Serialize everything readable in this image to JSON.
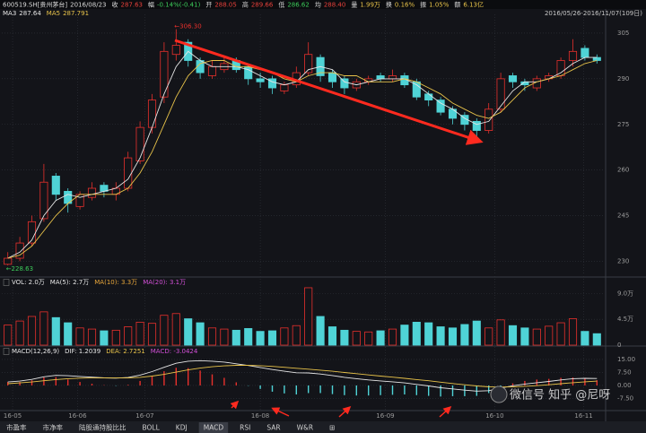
{
  "header": {
    "items": [
      {
        "label": "600519.SH[贵州茅台]",
        "value": "2016/08/23",
        "color": "#dcdcdc"
      },
      {
        "label": "收",
        "value": "287.63",
        "color": "#e8413b"
      },
      {
        "label": "幅",
        "value": "-0.14%(-0.41)",
        "color": "#3ccc5a"
      },
      {
        "label": "开",
        "value": "288.05",
        "color": "#e8413b"
      },
      {
        "label": "高",
        "value": "289.66",
        "color": "#e8413b"
      },
      {
        "label": "低",
        "value": "286.62",
        "color": "#3ccc5a"
      },
      {
        "label": "均",
        "value": "288.40",
        "color": "#e8413b"
      },
      {
        "label": "量",
        "value": "1.99万",
        "color": "#e8c34a"
      },
      {
        "label": "换",
        "value": "0.16%",
        "color": "#e8c34a"
      },
      {
        "label": "振",
        "value": "1.05%",
        "color": "#e8c34a"
      },
      {
        "label": "额",
        "value": "6.13亿",
        "color": "#e8c34a"
      }
    ],
    "date_range": "2016/05/26-2016/11/07(109日)"
  },
  "tabs": [
    "市盈率",
    "市净率",
    "陆股通持股比比",
    "BOLL",
    "KDJ",
    "MACD",
    "RSI",
    "SAR",
    "W&R",
    "⊞"
  ],
  "selected_tab": "MACD",
  "watermark": "微信号 知乎 @尼呀",
  "chart_data": [
    {
      "type": "candlestick",
      "up_color": "#e8302c",
      "down_color": "#4fd3d6",
      "ylim": [
        226,
        310
      ],
      "yticks": [
        230,
        245,
        260,
        275,
        290,
        305
      ],
      "grid": true,
      "annotations": [
        {
          "text": "←306.30",
          "index": 14,
          "value": 306.3,
          "color": "#e8302c"
        },
        {
          "text": "←228.63",
          "index": 0,
          "value": 228.63,
          "color": "#3ccc5a"
        }
      ],
      "open": [
        229,
        231,
        236,
        244,
        258,
        253,
        248,
        251,
        255,
        252,
        254,
        263,
        274,
        284,
        298,
        302,
        296,
        291,
        293,
        296,
        294,
        290,
        290,
        286,
        288,
        292,
        297,
        292,
        290,
        287,
        289,
        291,
        290,
        291,
        289,
        285,
        283,
        280,
        278,
        276,
        273,
        280,
        291,
        289,
        287,
        290,
        291,
        296,
        300,
        297
      ],
      "high": [
        233,
        238,
        245,
        262,
        259,
        254,
        253,
        256,
        256,
        256,
        266,
        276,
        285,
        302,
        306.3,
        303,
        297,
        296,
        297,
        297,
        295,
        292,
        291,
        289,
        294,
        302,
        298,
        293,
        291,
        290,
        291,
        292,
        293,
        292,
        290,
        286,
        284,
        281,
        279,
        277,
        282,
        292,
        292,
        290,
        291,
        292,
        297,
        303,
        301,
        298
      ],
      "low": [
        228.63,
        230,
        235,
        243,
        250,
        246,
        247,
        250,
        251,
        250,
        253,
        262,
        272,
        282,
        296,
        294,
        290,
        290,
        292,
        292,
        288,
        287,
        285,
        285,
        287,
        291,
        289,
        287,
        285,
        286,
        288,
        289,
        289,
        287,
        283,
        281,
        278,
        275,
        273,
        271,
        272,
        279,
        287,
        286,
        286,
        289,
        290,
        294,
        296,
        295
      ],
      "close": [
        231,
        236,
        243,
        256,
        252,
        249,
        252,
        254,
        253,
        254,
        264,
        274,
        283,
        299,
        301,
        296,
        292,
        294,
        295,
        293,
        290,
        289,
        287,
        288,
        292,
        298,
        291,
        289,
        287,
        289,
        290,
        290,
        291,
        288,
        284,
        283,
        279,
        277,
        275,
        273,
        280,
        290,
        289,
        288,
        290,
        291,
        296,
        299,
        297,
        296
      ],
      "series": [
        {
          "name": "MA3",
          "value_label": "287.64",
          "color": "#e6e6e6",
          "values": [
            231,
            233,
            237,
            245,
            250,
            252,
            251,
            252,
            253,
            254,
            257,
            264,
            274,
            285,
            294,
            299,
            296,
            294,
            294,
            294,
            293,
            291,
            289,
            288,
            289,
            293,
            294,
            293,
            289,
            288,
            289,
            290,
            290,
            290,
            288,
            285,
            282,
            280,
            277,
            275,
            276,
            281,
            286,
            289,
            289,
            290,
            292,
            295,
            297,
            297
          ]
        },
        {
          "name": "MA5",
          "value_label": "287.791",
          "color": "#e8c34a",
          "values": [
            231,
            232,
            235,
            240,
            245,
            249,
            252,
            252,
            252,
            252,
            254,
            259,
            266,
            275,
            284,
            291,
            295,
            296,
            296,
            294,
            294,
            293,
            292,
            290,
            289,
            291,
            292,
            292,
            291,
            291,
            289,
            289,
            289,
            290,
            289,
            287,
            285,
            282,
            280,
            278,
            277,
            279,
            283,
            287,
            289,
            290,
            291,
            293,
            295,
            296
          ]
        }
      ]
    },
    {
      "type": "bar",
      "legend": [
        {
          "text": "VOL: 2.0万",
          "color": "#e6e6e6"
        },
        {
          "text": "MA(5): 2.7万",
          "color": "#e6e6e6"
        },
        {
          "text": "MA(10): 3.3万",
          "color": "#e8a63a"
        },
        {
          "text": "MA(20): 3.1万",
          "color": "#d14fd6"
        }
      ],
      "ylim": [
        0,
        11.4
      ],
      "yticks": [
        {
          "value": 9,
          "label": "9.0万"
        },
        {
          "value": 4.5,
          "label": "4.5万"
        },
        0
      ],
      "values": [
        3.5,
        4.2,
        5.0,
        5.8,
        4.8,
        3.9,
        3.0,
        2.8,
        2.5,
        2.6,
        3.2,
        4.0,
        3.8,
        5.2,
        5.5,
        4.6,
        3.9,
        3.0,
        2.8,
        2.6,
        2.9,
        2.4,
        2.5,
        3.0,
        3.4,
        10.0,
        5.0,
        3.2,
        2.6,
        2.4,
        2.3,
        2.5,
        2.8,
        3.5,
        4.0,
        3.9,
        3.2,
        3.0,
        3.6,
        4.2,
        3.0,
        4.4,
        3.4,
        3.0,
        2.8,
        3.3,
        3.9,
        4.6,
        2.4,
        2.0
      ]
    },
    {
      "type": "macd",
      "legend": [
        {
          "text": "MACD(12,26,9)",
          "color": "#e6e6e6"
        },
        {
          "text": "DIF: 1.2039",
          "color": "#e6e6e6"
        },
        {
          "text": "DEA: 2.7251",
          "color": "#e8c34a"
        },
        {
          "text": "MACD: -3.0424",
          "color": "#d14fd6"
        }
      ],
      "ylim": [
        -14.5,
        21.7
      ],
      "yticks": [
        {
          "value": 15,
          "label": "15.00"
        },
        {
          "value": 7.5,
          "label": "7.50"
        },
        {
          "value": 0,
          "label": "0.00"
        },
        {
          "value": -7.5,
          "label": "-7.50"
        }
      ],
      "xlim": [
        -0.5,
        49.5
      ],
      "xticks": [
        {
          "value": 0.4,
          "label": "16-05"
        },
        {
          "value": 5.8,
          "label": "16-06"
        },
        {
          "value": 11.4,
          "label": "16-07"
        },
        {
          "value": 21,
          "label": "16-08"
        },
        {
          "value": 31.4,
          "label": "16-09"
        },
        {
          "value": 40.5,
          "label": "16-10"
        },
        {
          "value": 47.9,
          "label": "16-11"
        }
      ],
      "up_color": "#e8302c",
      "down_color": "#4fd3d6",
      "macd": [
        2,
        2,
        3,
        4.6,
        4.8,
        3.4,
        2,
        1,
        0.2,
        -0.2,
        0.4,
        2.6,
        5.2,
        8.2,
        10.2,
        10,
        8.6,
        6.4,
        4.4,
        1.8,
        -0.2,
        -2,
        -3.6,
        -4.6,
        -5.2,
        -4.4,
        -4.4,
        -5,
        -5.6,
        -5.8,
        -5.8,
        -5.6,
        -5.4,
        -5.2,
        -5.6,
        -6,
        -6.4,
        -6.2,
        -6.2,
        -6,
        -4.4,
        -1.2,
        1.2,
        2.6,
        3.4,
        3.8,
        4.4,
        4.6,
        4,
        3
      ],
      "series": [
        {
          "name": "DIF",
          "color": "#e6e6e6",
          "values": [
            2,
            2.5,
            3.5,
            5,
            5.8,
            5.6,
            5.2,
            4.8,
            4.4,
            4.2,
            4.6,
            6,
            8,
            10.5,
            12.8,
            14,
            14.3,
            14,
            13.5,
            12.5,
            11.5,
            10.4,
            9.2,
            8.2,
            7.3,
            7.2,
            6.6,
            5.7,
            4.7,
            3.9,
            3.2,
            2.6,
            2.1,
            1.5,
            0.6,
            -0.3,
            -1.3,
            -2.0,
            -2.7,
            -3.3,
            -3.0,
            -1.5,
            -0.2,
            0.8,
            1.6,
            2.3,
            3.2,
            3.9,
            4.1,
            4.0
          ]
        },
        {
          "name": "DEA",
          "color": "#e8c34a",
          "values": [
            1,
            1.5,
            2,
            2.7,
            3.4,
            3.9,
            4.2,
            4.3,
            4.3,
            4.3,
            4.4,
            4.7,
            5.4,
            6.4,
            7.7,
            9,
            10,
            10.8,
            11.3,
            11.6,
            11.6,
            11.4,
            11,
            10.5,
            9.9,
            9.4,
            8.8,
            8.2,
            7.5,
            6.8,
            6.1,
            5.4,
            4.8,
            4.1,
            3.4,
            2.7,
            1.9,
            1.1,
            0.4,
            -0.3,
            -0.8,
            -0.9,
            -0.8,
            -0.5,
            -0.1,
            0.4,
            1.0,
            1.6,
            2.1,
            2.5
          ]
        }
      ]
    }
  ]
}
